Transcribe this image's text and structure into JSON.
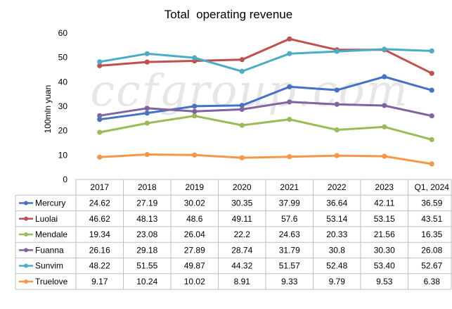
{
  "watermark": "ccfgroup.com",
  "chart_data": {
    "type": "line",
    "title": "Total  operating revenue",
    "xlabel": "",
    "ylabel": "100mln yuan",
    "ylim": [
      0,
      60
    ],
    "yticks": [
      0,
      10,
      20,
      30,
      40,
      50,
      60
    ],
    "grid": false,
    "legend": "table-left",
    "categories": [
      "2017",
      "2018",
      "2019",
      "2020",
      "2021",
      "2022",
      "2023",
      "Q1, 2024"
    ],
    "series": [
      {
        "name": "Mercury",
        "color": "#4472c4",
        "values": [
          24.62,
          27.19,
          30.02,
          30.35,
          37.99,
          36.64,
          42.11,
          36.59
        ],
        "labels": [
          "24.62",
          "27.19",
          "30.02",
          "30.35",
          "37.99",
          "36.64",
          "42.11",
          "36.59"
        ]
      },
      {
        "name": "Luolai",
        "color": "#c0504d",
        "values": [
          46.62,
          48.13,
          48.6,
          49.11,
          57.6,
          53.14,
          53.15,
          43.51
        ],
        "labels": [
          "46.62",
          "48.13",
          "48.6",
          "49.11",
          "57.6",
          "53.14",
          "53.15",
          "43.51"
        ]
      },
      {
        "name": "Mendale",
        "color": "#9bbb59",
        "values": [
          19.34,
          23.08,
          26.04,
          22.2,
          24.63,
          20.33,
          21.56,
          16.35
        ],
        "labels": [
          "19.34",
          "23.08",
          "26.04",
          "22.2",
          "24.63",
          "20.33",
          "21.56",
          "16.35"
        ]
      },
      {
        "name": "Fuanna",
        "color": "#8064a2",
        "values": [
          26.16,
          29.18,
          27.89,
          28.74,
          31.79,
          30.8,
          30.3,
          26.08
        ],
        "labels": [
          "26.16",
          "29.18",
          "27.89",
          "28.74",
          "31.79",
          "30.8",
          "30.30",
          "26.08"
        ]
      },
      {
        "name": "Sunvim",
        "color": "#4bacc6",
        "values": [
          48.22,
          51.55,
          49.87,
          44.32,
          51.57,
          52.48,
          53.4,
          52.67
        ],
        "labels": [
          "48.22",
          "51.55",
          "49.87",
          "44.32",
          "51.57",
          "52.48",
          "53.40",
          "52.67"
        ]
      },
      {
        "name": "Truelove",
        "color": "#f79646",
        "values": [
          9.17,
          10.24,
          10.02,
          8.91,
          9.33,
          9.79,
          9.53,
          6.38
        ],
        "labels": [
          "9.17",
          "10.24",
          "10.02",
          "8.91",
          "9.33",
          "9.79",
          "9.53",
          "6.38"
        ]
      }
    ]
  }
}
